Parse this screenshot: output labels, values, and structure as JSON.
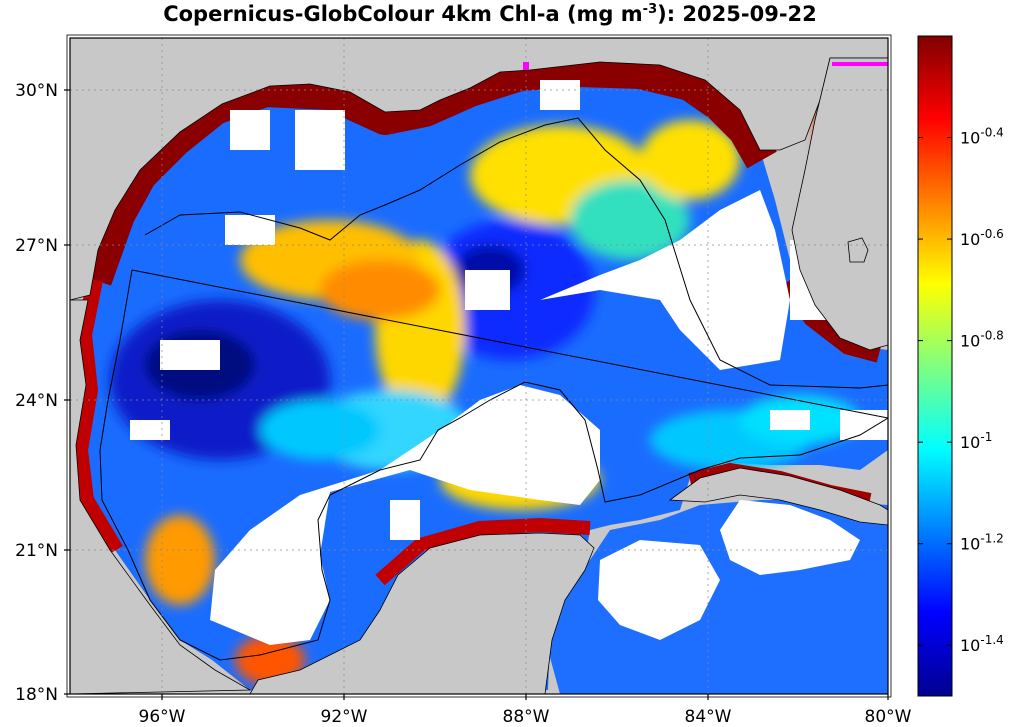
{
  "title": {
    "prefix": "Copernicus-GlobColour 4km Chl-a (mg m",
    "sup": "-3",
    "suffix": "): 2025-09-22"
  },
  "map": {
    "lon_range": [
      -98,
      -80
    ],
    "lat_range": [
      18,
      31
    ],
    "colors": {
      "land": "#c8c8c8",
      "nodata": "#ffffff"
    },
    "x_ticks": [
      {
        "lon": -96,
        "label": "96°W"
      },
      {
        "lon": -92,
        "label": "92°W"
      },
      {
        "lon": -88,
        "label": "88°W"
      },
      {
        "lon": -84,
        "label": "84°W"
      },
      {
        "lon": -80,
        "label": "80°W"
      }
    ],
    "y_ticks": [
      {
        "lat": 30,
        "label": "30°N"
      },
      {
        "lat": 27,
        "label": "27°N"
      },
      {
        "lat": 24,
        "label": "24°N"
      },
      {
        "lat": 21,
        "label": "21°N"
      },
      {
        "lat": 18,
        "label": "18°N"
      }
    ]
  },
  "colorbar": {
    "scale": "log10",
    "range": [
      -1.5,
      -0.2
    ],
    "ticks": [
      {
        "value": -0.4,
        "base": "10",
        "exp": "-0.4"
      },
      {
        "value": -0.6,
        "base": "10",
        "exp": "-0.6"
      },
      {
        "value": -0.8,
        "base": "10",
        "exp": "-0.8"
      },
      {
        "value": -1.0,
        "base": "10",
        "exp": "-1"
      },
      {
        "value": -1.2,
        "base": "10",
        "exp": "-1.2"
      },
      {
        "value": -1.4,
        "base": "10",
        "exp": "-1.4"
      }
    ]
  }
}
